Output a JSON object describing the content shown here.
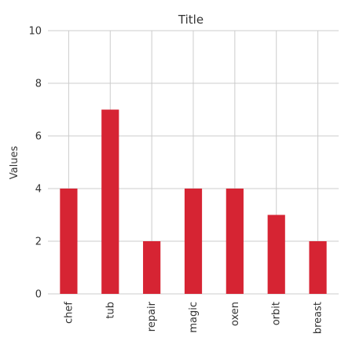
{
  "chart_data": {
    "type": "bar",
    "title": "Title",
    "xlabel": "",
    "ylabel": "Values",
    "categories": [
      "chef",
      "tub",
      "repair",
      "magic",
      "oxen",
      "orbit",
      "breast"
    ],
    "values": [
      4,
      7,
      2,
      4,
      4,
      3,
      2
    ],
    "ylim": [
      0,
      10
    ],
    "yticks": [
      0,
      2,
      4,
      6,
      8,
      10
    ],
    "grid": true,
    "bar_color": "#d62433",
    "grid_color": "#cccccc"
  }
}
